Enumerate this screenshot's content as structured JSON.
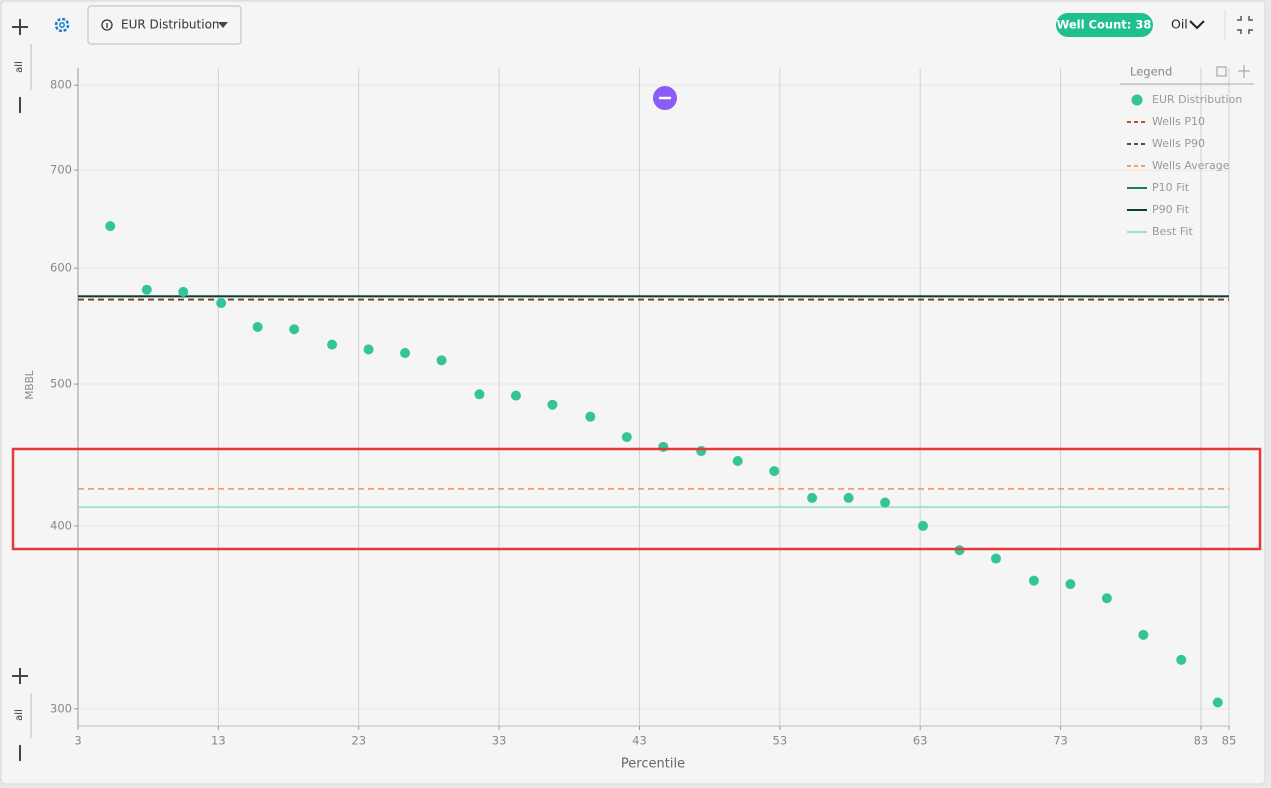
{
  "toolbar": {
    "view_select": "EUR Distribution",
    "well_count": "Well Count: 38",
    "product_select": "Oil",
    "zoom_all_top": "all",
    "zoom_all_bottom": "all"
  },
  "chart_data": {
    "type": "scatter",
    "x_label": "Percentile",
    "y_label": "MBBL",
    "legend_title": "Legend",
    "xlim": [
      3,
      85
    ],
    "xticks": [
      3,
      13,
      23,
      33,
      43,
      53,
      63,
      73,
      83,
      85
    ],
    "ylim": [
      292,
      822
    ],
    "yticks": [
      300,
      400,
      500,
      600,
      700,
      800
    ],
    "log_y": true,
    "grid": true,
    "legend": "top-right",
    "series": [
      {
        "name": "EUR Distribution",
        "kind": "points",
        "color": "#33c49a",
        "x": [
          5.3,
          7.9,
          10.5,
          13.2,
          15.8,
          18.4,
          21.1,
          23.7,
          26.3,
          28.9,
          31.6,
          34.2,
          36.8,
          39.5,
          42.1,
          44.7,
          47.4,
          50.0,
          52.6,
          55.3,
          57.9,
          60.5,
          63.2,
          65.8,
          68.4,
          71.1,
          73.7,
          76.3,
          78.9,
          81.6,
          84.2
        ],
        "values": [
          641,
          580,
          578,
          568,
          547,
          545,
          532,
          528,
          525,
          519,
          492,
          491,
          484,
          475,
          460,
          453,
          450,
          443,
          436,
          418,
          418,
          415,
          400,
          385,
          380,
          367,
          365,
          357,
          337,
          324,
          303
        ]
      },
      {
        "name": "Wells P10",
        "kind": "hline",
        "dash": true,
        "color": "#b5552a",
        "values": [
          571
        ]
      },
      {
        "name": "Wells P90",
        "kind": "hline",
        "dash": true,
        "color": "#7a3a1a",
        "values": [
          571
        ]
      },
      {
        "name": "Wells Average",
        "kind": "hline",
        "dash": true,
        "color": "#f4a06a",
        "values": [
          424
        ]
      },
      {
        "name": "P10 Fit",
        "kind": "hline",
        "dash": false,
        "color": "#1e7b66",
        "values": [
          574
        ]
      },
      {
        "name": "P90 Fit",
        "kind": "hline",
        "dash": false,
        "color": "#0d3d33",
        "values": [
          574
        ]
      },
      {
        "name": "Best Fit",
        "kind": "hline",
        "dash": false,
        "color": "#9ee0c9",
        "values": [
          412
        ]
      }
    ]
  }
}
